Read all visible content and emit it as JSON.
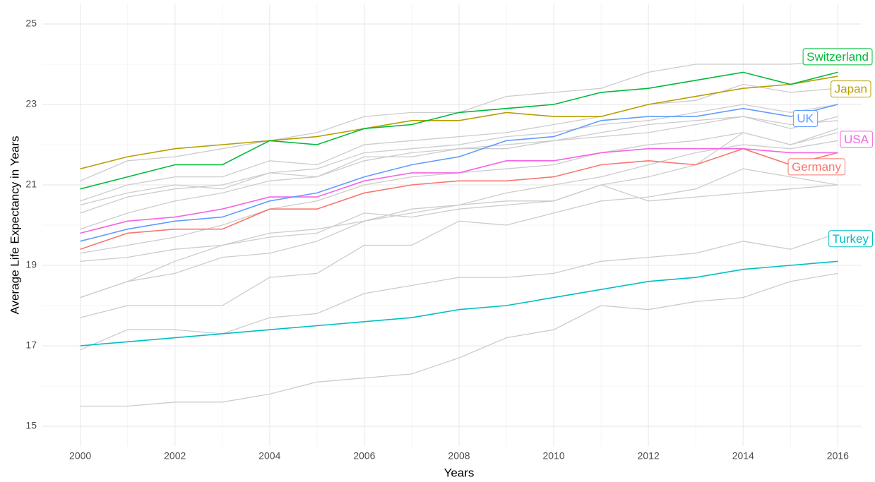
{
  "chart_data": {
    "type": "line",
    "x_label": "Years",
    "y_label": "Average Life Expectancy in Years",
    "x": [
      2000,
      2001,
      2002,
      2003,
      2004,
      2005,
      2006,
      2007,
      2008,
      2009,
      2010,
      2011,
      2012,
      2013,
      2014,
      2015,
      2016
    ],
    "xlim": [
      1999.2,
      2016.8
    ],
    "xticks": [
      2000,
      2002,
      2004,
      2006,
      2008,
      2010,
      2012,
      2014,
      2016
    ],
    "ylim": [
      14.5,
      25.5
    ],
    "yticks": [
      15,
      17,
      19,
      21,
      23,
      25
    ],
    "grid": true,
    "series": [
      {
        "color": "#cccccc",
        "values": [
          15.5,
          15.5,
          15.6,
          15.6,
          15.8,
          16.1,
          16.2,
          16.3,
          16.7,
          17.2,
          17.4,
          18.0,
          17.9,
          18.1,
          18.2,
          18.6,
          18.8
        ]
      },
      {
        "color": "#cccccc",
        "values": [
          16.9,
          17.4,
          17.4,
          17.3,
          17.7,
          17.8,
          18.3,
          18.5,
          18.7,
          18.7,
          18.8,
          19.1,
          19.2,
          19.3,
          19.6,
          19.4,
          19.8
        ]
      },
      {
        "color": "#cccccc",
        "values": [
          17.7,
          18.0,
          18.0,
          18.0,
          18.7,
          18.8,
          19.5,
          19.5,
          20.1,
          20.0,
          20.3,
          20.6,
          20.7,
          20.9,
          21.4,
          21.2,
          21.0
        ]
      },
      {
        "color": "#cccccc",
        "values": [
          18.2,
          18.6,
          19.1,
          19.5,
          19.8,
          19.9,
          20.1,
          20.3,
          20.5,
          20.6,
          20.6,
          21.0,
          20.6,
          20.7,
          20.8,
          20.9,
          21.0
        ]
      },
      {
        "color": "#cccccc",
        "values": [
          18.2,
          18.6,
          18.8,
          19.2,
          19.3,
          19.6,
          20.1,
          20.4,
          20.5,
          20.8,
          21.0,
          21.2,
          21.5,
          21.8,
          22.0,
          21.9,
          22.1
        ]
      },
      {
        "color": "#cccccc",
        "values": [
          19.1,
          19.2,
          19.4,
          19.5,
          19.7,
          19.8,
          20.3,
          20.2,
          20.4,
          20.5,
          20.6,
          21.0,
          21.2,
          21.5,
          22.3,
          22.0,
          22.4
        ]
      },
      {
        "color": "#cccccc",
        "values": [
          20.6,
          21.0,
          21.2,
          21.2,
          21.6,
          21.5,
          22.0,
          22.1,
          22.2,
          22.3,
          22.5,
          22.7,
          23.0,
          23.1,
          23.5,
          23.3,
          23.4
        ]
      },
      {
        "color": "#cccccc",
        "values": [
          21.1,
          21.6,
          21.7,
          21.9,
          22.1,
          22.3,
          22.7,
          22.8,
          22.8,
          23.2,
          23.3,
          23.4,
          23.8,
          24.0,
          24.0,
          24.0,
          24.1
        ]
      },
      {
        "color": "#cccccc",
        "values": [
          20.3,
          20.7,
          20.9,
          21.0,
          21.3,
          21.4,
          21.8,
          21.9,
          22.0,
          22.2,
          22.3,
          22.5,
          22.6,
          22.8,
          23.0,
          22.8,
          23.0
        ]
      },
      {
        "color": "#cccccc",
        "values": [
          19.9,
          20.3,
          20.6,
          20.8,
          21.1,
          21.2,
          21.6,
          21.8,
          21.9,
          21.9,
          22.1,
          22.2,
          22.3,
          22.5,
          22.7,
          22.4,
          22.7
        ]
      },
      {
        "color": "#cccccc",
        "values": [
          19.3,
          19.5,
          19.7,
          20.0,
          20.4,
          20.6,
          21.0,
          21.2,
          21.3,
          21.4,
          21.5,
          21.8,
          22.0,
          22.1,
          22.3,
          22.0,
          22.3
        ]
      },
      {
        "color": "#cccccc",
        "values": [
          20.5,
          20.8,
          21.0,
          20.9,
          21.3,
          21.2,
          21.7,
          21.7,
          21.9,
          22.0,
          22.1,
          22.3,
          22.5,
          22.6,
          22.7,
          22.5,
          22.6
        ]
      },
      {
        "name": "Turkey",
        "color": "#00bfc4",
        "values": [
          17.0,
          17.1,
          17.2,
          17.3,
          17.4,
          17.5,
          17.6,
          17.7,
          17.9,
          18.0,
          18.2,
          18.4,
          18.6,
          18.7,
          18.9,
          19.0,
          19.1
        ]
      },
      {
        "name": "Germany",
        "color": "#f8766d",
        "values": [
          19.4,
          19.8,
          19.9,
          19.9,
          20.4,
          20.4,
          20.8,
          21.0,
          21.1,
          21.1,
          21.2,
          21.5,
          21.6,
          21.5,
          21.9,
          21.5,
          21.8
        ]
      },
      {
        "name": "USA",
        "color": "#f564e3",
        "values": [
          19.8,
          20.1,
          20.2,
          20.4,
          20.7,
          20.7,
          21.1,
          21.3,
          21.3,
          21.6,
          21.6,
          21.8,
          21.9,
          21.9,
          21.9,
          21.8,
          21.8
        ]
      },
      {
        "name": "UK",
        "color": "#619cff",
        "values": [
          19.6,
          19.9,
          20.1,
          20.2,
          20.6,
          20.8,
          21.2,
          21.5,
          21.7,
          22.1,
          22.2,
          22.6,
          22.7,
          22.7,
          22.9,
          22.7,
          23.0
        ]
      },
      {
        "name": "Japan",
        "color": "#b79f00",
        "values": [
          21.4,
          21.7,
          21.9,
          22.0,
          22.1,
          22.2,
          22.4,
          22.6,
          22.6,
          22.8,
          22.7,
          22.7,
          23.0,
          23.2,
          23.4,
          23.5,
          23.7
        ]
      },
      {
        "name": "Switzerland",
        "color": "#00ba38",
        "values": [
          20.9,
          21.2,
          21.5,
          21.5,
          22.1,
          22.0,
          22.4,
          22.5,
          22.8,
          22.9,
          23.0,
          23.3,
          23.4,
          23.6,
          23.8,
          23.5,
          23.8
        ]
      }
    ]
  }
}
